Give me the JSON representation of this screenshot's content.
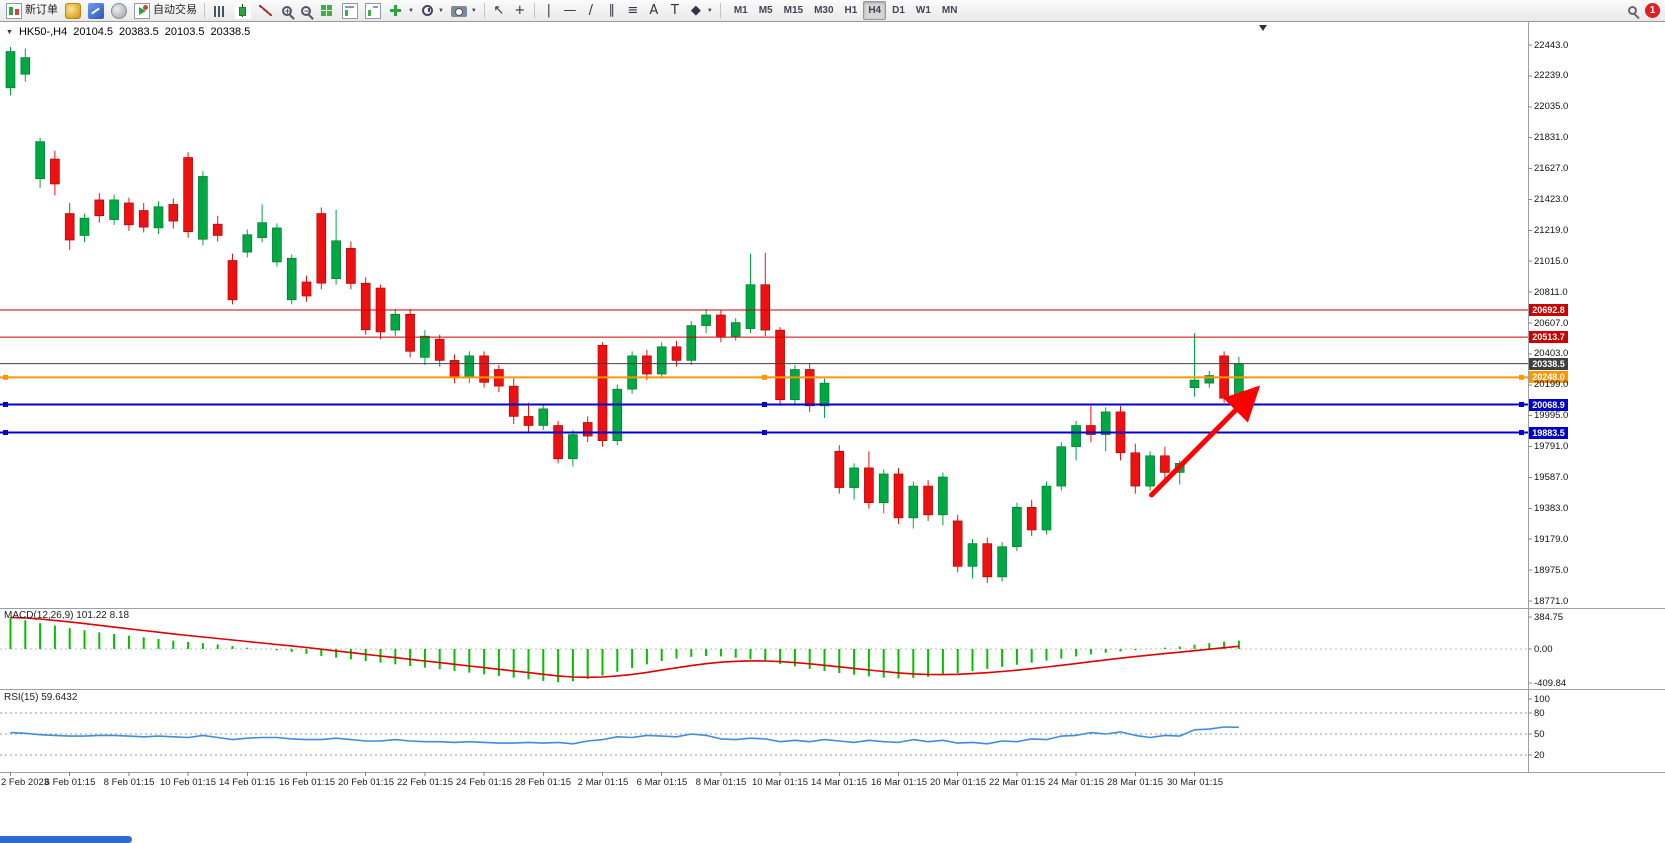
{
  "toolbar": {
    "items": [
      {
        "type": "button",
        "name": "new-order-button",
        "icon": "new-order-icon",
        "label": "新订单"
      },
      {
        "type": "button",
        "name": "history-center-button",
        "icon": "gold-coins-icon"
      },
      {
        "type": "button",
        "name": "market-watch-button",
        "icon": "blue-chart-icon"
      },
      {
        "type": "button",
        "name": "strategy-tester-button",
        "icon": "gray-globe-icon"
      },
      {
        "type": "button",
        "name": "auto-trading-button",
        "icon": "auto-trading-icon",
        "label": "自动交易"
      },
      {
        "type": "separator"
      },
      {
        "type": "button",
        "name": "bar-chart-mode-button",
        "icon": "bar-chart-icon"
      },
      {
        "type": "button",
        "name": "candlestick-mode-button",
        "icon": "candlestick-icon"
      },
      {
        "type": "button",
        "name": "line-chart-mode-button",
        "icon": "line-chart-icon"
      },
      {
        "type": "button",
        "name": "zoom-in-button",
        "icon": "zoom-in-icon"
      },
      {
        "type": "button",
        "name": "zoom-out-button",
        "icon": "zoom-out-icon"
      },
      {
        "type": "button",
        "name": "tile-windows-button",
        "icon": "tile-windows-icon"
      },
      {
        "type": "button",
        "name": "auto-arrange-button",
        "icon": "arrange-chart-icon"
      },
      {
        "type": "button",
        "name": "cascade-windows-button",
        "icon": "arrange-chart2-icon"
      },
      {
        "type": "button",
        "name": "new-chart-button",
        "icon": "add-chart-icon",
        "dropdown": true
      },
      {
        "type": "button",
        "name": "periods-button",
        "icon": "clock-icon",
        "dropdown": true
      },
      {
        "type": "button",
        "name": "templates-button",
        "icon": "snapshot-icon",
        "dropdown": true
      },
      {
        "type": "separator"
      },
      {
        "type": "button",
        "name": "cursor-button",
        "icon": "cursor-icon"
      },
      {
        "type": "button",
        "name": "crosshair-button",
        "icon": "crosshair-icon"
      },
      {
        "type": "separator"
      },
      {
        "type": "button",
        "name": "vertical-line-button",
        "icon": "vertical-line-icon"
      },
      {
        "type": "button",
        "name": "horizontal-line-button",
        "icon": "horizontal-line-icon"
      },
      {
        "type": "button",
        "name": "trendline-button",
        "icon": "trendline-icon"
      },
      {
        "type": "button",
        "name": "equidistant-channel-button",
        "icon": "channel-icon"
      },
      {
        "type": "button",
        "name": "fibonacci-button",
        "icon": "fibonacci-icon"
      },
      {
        "type": "button",
        "name": "text-button",
        "icon": "text-icon"
      },
      {
        "type": "button",
        "name": "text-label-button",
        "icon": "label-icon"
      },
      {
        "type": "button",
        "name": "objects-button",
        "icon": "objects-icon",
        "dropdown": true
      },
      {
        "type": "separator"
      }
    ],
    "timeframes": [
      "M1",
      "M5",
      "M15",
      "M30",
      "H1",
      "H4",
      "D1",
      "W1",
      "MN"
    ],
    "active_timeframe": "H4",
    "notification_badge": "1"
  },
  "chart": {
    "symbol_period": "HK50-,H4",
    "open": "20104.5",
    "high": "20383.5",
    "low": "20103.5",
    "close": "20338.5"
  },
  "macd": {
    "label": "MACD(12,26,9) 101.22 8.18"
  },
  "rsi": {
    "label": "RSI(15) 59.6432"
  },
  "chart_data": [
    {
      "type": "candlestick",
      "symbol": "HK50-",
      "period": "H4",
      "current": {
        "open": 20104.5,
        "high": 20383.5,
        "low": 20103.5,
        "close": 20338.5
      },
      "ylim": [
        18771.0,
        22443.0
      ],
      "up_color": "#00a843",
      "down_color": "#ee1111",
      "y_ticks": [
        "22443.0",
        "22239.0",
        "22035.0",
        "21831.0",
        "21627.0",
        "21423.0",
        "21219.0",
        "21015.0",
        "20811.0",
        "20607.0",
        "20403.0",
        "20199.0",
        "19995.0",
        "19791.0",
        "19587.0",
        "19383.0",
        "19179.0",
        "18975.0",
        "18771.0"
      ],
      "x_labels": [
        "2 Feb 2023",
        "6 Feb 01:15",
        "8 Feb 01:15",
        "10 Feb 01:15",
        "14 Feb 01:15",
        "16 Feb 01:15",
        "20 Feb 01:15",
        "22 Feb 01:15",
        "24 Feb 01:15",
        "28 Feb 01:15",
        "2 Mar 01:15",
        "6 Mar 01:15",
        "8 Mar 01:15",
        "10 Mar 01:15",
        "14 Mar 01:15",
        "16 Mar 01:15",
        "20 Mar 01:15",
        "22 Mar 01:15",
        "24 Mar 01:15",
        "28 Mar 01:15",
        "30 Mar 01:15"
      ],
      "candles": [
        [
          22160,
          22430,
          22110,
          22400
        ],
        [
          22250,
          22420,
          22200,
          22360
        ],
        [
          21560,
          21830,
          21500,
          21805
        ],
        [
          21690,
          21745,
          21450,
          21525
        ],
        [
          21330,
          21400,
          21090,
          21155
        ],
        [
          21185,
          21330,
          21140,
          21300
        ],
        [
          21420,
          21465,
          21270,
          21315
        ],
        [
          21290,
          21455,
          21255,
          21420
        ],
        [
          21400,
          21435,
          21215,
          21255
        ],
        [
          21350,
          21400,
          21205,
          21240
        ],
        [
          21235,
          21410,
          21195,
          21375
        ],
        [
          21390,
          21430,
          21230,
          21280
        ],
        [
          21700,
          21735,
          21170,
          21210
        ],
        [
          21160,
          21610,
          21120,
          21575
        ],
        [
          21260,
          21315,
          21145,
          21185
        ],
        [
          21020,
          21065,
          20730,
          20760
        ],
        [
          21075,
          21225,
          21040,
          21190
        ],
        [
          21170,
          21390,
          21140,
          21270
        ],
        [
          21010,
          21265,
          20980,
          21235
        ],
        [
          20760,
          21060,
          20730,
          21035
        ],
        [
          20878,
          20920,
          20748,
          20785
        ],
        [
          21330,
          21370,
          20830,
          20870
        ],
        [
          20900,
          21355,
          20860,
          21150
        ],
        [
          21100,
          21145,
          20830,
          20868
        ],
        [
          20870,
          20910,
          20530,
          20562
        ],
        [
          20838,
          20860,
          20500,
          20548
        ],
        [
          20560,
          20700,
          20520,
          20665
        ],
        [
          20665,
          20700,
          20380,
          20420
        ],
        [
          20380,
          20560,
          20330,
          20520
        ],
        [
          20500,
          20530,
          20320,
          20360
        ],
        [
          20360,
          20400,
          20210,
          20250
        ],
        [
          20250,
          20420,
          20210,
          20390
        ],
        [
          20390,
          20420,
          20180,
          20215
        ],
        [
          20300,
          20330,
          20150,
          20190
        ],
        [
          20190,
          20240,
          19940,
          19990
        ],
        [
          19990,
          20080,
          19880,
          19930
        ],
        [
          19930,
          20070,
          19900,
          20040
        ],
        [
          19930,
          19960,
          19680,
          19710
        ],
        [
          19710,
          19900,
          19660,
          19870
        ],
        [
          19950,
          19990,
          19820,
          19860
        ],
        [
          20460,
          20480,
          19790,
          19830
        ],
        [
          19830,
          20200,
          19800,
          20170
        ],
        [
          20170,
          20420,
          20140,
          20390
        ],
        [
          20390,
          20430,
          20230,
          20270
        ],
        [
          20270,
          20480,
          20240,
          20450
        ],
        [
          20450,
          20490,
          20320,
          20360
        ],
        [
          20360,
          20620,
          20330,
          20590
        ],
        [
          20590,
          20700,
          20540,
          20660
        ],
        [
          20660,
          20690,
          20480,
          20520
        ],
        [
          20520,
          20640,
          20490,
          20610
        ],
        [
          20570,
          21065,
          20540,
          20860
        ],
        [
          20860,
          21070,
          20520,
          20560
        ],
        [
          20560,
          20580,
          20060,
          20100
        ],
        [
          20100,
          20330,
          20060,
          20300
        ],
        [
          20300,
          20340,
          20020,
          20060
        ],
        [
          20060,
          20240,
          19980,
          20210
        ],
        [
          19760,
          19800,
          19480,
          19520
        ],
        [
          19520,
          19680,
          19440,
          19650
        ],
        [
          19650,
          19760,
          19380,
          19420
        ],
        [
          19420,
          19640,
          19350,
          19610
        ],
        [
          19610,
          19650,
          19280,
          19320
        ],
        [
          19320,
          19560,
          19250,
          19530
        ],
        [
          19530,
          19570,
          19300,
          19340
        ],
        [
          19340,
          19620,
          19270,
          19590
        ],
        [
          19300,
          19340,
          18960,
          19000
        ],
        [
          19000,
          19180,
          18920,
          19150
        ],
        [
          19150,
          19190,
          18890,
          18930
        ],
        [
          18930,
          19160,
          18900,
          19130
        ],
        [
          19130,
          19420,
          19100,
          19390
        ],
        [
          19390,
          19440,
          19200,
          19240
        ],
        [
          19240,
          19560,
          19210,
          19530
        ],
        [
          19530,
          19820,
          19500,
          19790
        ],
        [
          19790,
          19960,
          19700,
          19930
        ],
        [
          19930,
          20060,
          19820,
          19870
        ],
        [
          19870,
          20050,
          19760,
          20020
        ],
        [
          20020,
          20060,
          19700,
          19750
        ],
        [
          19750,
          19810,
          19480,
          19530
        ],
        [
          19530,
          19760,
          19500,
          19730
        ],
        [
          19730,
          19790,
          19560,
          19620
        ],
        [
          19620,
          19700,
          19540,
          19680
        ],
        [
          20180,
          20540,
          20120,
          20230
        ],
        [
          20210,
          20290,
          20180,
          20260
        ],
        [
          20390,
          20420,
          20080,
          20110
        ],
        [
          20104.5,
          20383.5,
          20103.5,
          20338.5
        ]
      ],
      "levels": [
        {
          "price": 20692.8,
          "label": "20692.8",
          "color": "#cc0000",
          "width": 1,
          "handles": false
        },
        {
          "price": 20513.7,
          "label": "20513.7",
          "color": "#cc0000",
          "width": 1,
          "handles": false
        },
        {
          "price": 20338.5,
          "label": "20338.5",
          "color": "#3f3f3f",
          "width": 1,
          "handles": false
        },
        {
          "price": 20248.0,
          "label": "20248.0",
          "color": "#ff9500",
          "width": 2,
          "handles": true
        },
        {
          "price": 20068.9,
          "label": "20068.9",
          "color": "#0000cd",
          "width": 2,
          "handles": true
        },
        {
          "price": 19883.5,
          "label": "19883.5",
          "color": "#0000cd",
          "width": 2,
          "handles": true
        }
      ],
      "annotation_arrow": {
        "from": [
          77.4,
          19471
        ],
        "to": [
          84.5,
          20171
        ],
        "color": "#ff0000"
      }
    },
    {
      "type": "bar",
      "name": "MACD(12,26,9)",
      "values_label": "101.22 8.18",
      "ylim": [
        -409.84,
        384.75
      ],
      "y_ticks": [
        "384.75",
        "0.00",
        "-409.84"
      ],
      "bar_color": "#00c000",
      "signal_color": "#e00000",
      "values": [
        380,
        345,
        310,
        280,
        250,
        225,
        200,
        180,
        160,
        140,
        120,
        100,
        85,
        70,
        55,
        35,
        15,
        0,
        -15,
        -35,
        -60,
        -85,
        -105,
        -125,
        -145,
        -165,
        -185,
        -205,
        -225,
        -245,
        -265,
        -285,
        -305,
        -325,
        -345,
        -365,
        -385,
        -400,
        -390,
        -360,
        -320,
        -275,
        -230,
        -185,
        -145,
        -115,
        -95,
        -85,
        -90,
        -105,
        -125,
        -150,
        -180,
        -210,
        -240,
        -265,
        -290,
        -310,
        -330,
        -345,
        -355,
        -350,
        -335,
        -315,
        -290,
        -265,
        -240,
        -215,
        -190,
        -165,
        -140,
        -115,
        -90,
        -65,
        -45,
        -30,
        -15,
        0,
        15,
        30,
        50,
        70,
        88,
        101
      ]
    },
    {
      "type": "line",
      "name": "RSI(15)",
      "last_value": 59.6432,
      "ylim": [
        0,
        100
      ],
      "levels": [
        80,
        50,
        20
      ],
      "y_ticks": [
        "100",
        "80",
        "50",
        "20"
      ],
      "line_color": "#3f8edc",
      "values": [
        52,
        51,
        49,
        48,
        47,
        47,
        48,
        48,
        47,
        46,
        47,
        46,
        45,
        48,
        45,
        42,
        44,
        45,
        45,
        43,
        42,
        42,
        44,
        42,
        40,
        40,
        42,
        40,
        39,
        39,
        38,
        39,
        38,
        37,
        37,
        38,
        37,
        38,
        36,
        40,
        42,
        46,
        45,
        48,
        47,
        46,
        50,
        48,
        43,
        42,
        44,
        43,
        39,
        41,
        39,
        42,
        40,
        38,
        41,
        39,
        38,
        42,
        39,
        41,
        37,
        38,
        36,
        40,
        39,
        43,
        42,
        47,
        48,
        52,
        50,
        53,
        48,
        45,
        48,
        47,
        56,
        57,
        60,
        59.6
      ]
    }
  ]
}
